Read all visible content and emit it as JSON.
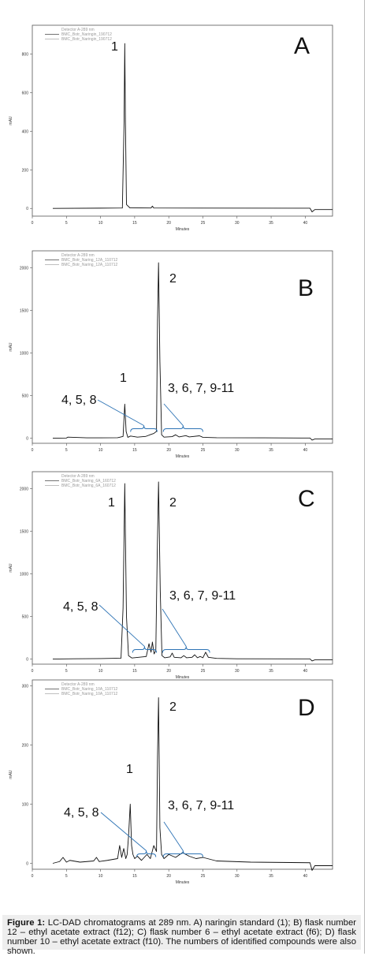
{
  "figure_caption": {
    "label": "Figure 1:",
    "text": "LC-DAD chromatograms at 289 nm. A) naringin standard (1); B) flask number 12 – ethyl acetate extract (f12); C) flask number 6 – ethyl acetate extract (f6); D) flask number 10 – ethyl acetate extract (f10). The numbers of identified compounds were also shown."
  },
  "colors": {
    "trace": "#111111",
    "annotation": "#2e74b5",
    "caption_bg": "#eeeeee"
  },
  "chart_data": [
    {
      "panel": "A",
      "type": "line",
      "xlabel": "Minutes",
      "ylabel": "mAU",
      "xlim": [
        0,
        44
      ],
      "ylim": [
        -40,
        950
      ],
      "xticks": [
        0,
        5,
        10,
        15,
        20,
        25,
        30,
        35,
        40
      ],
      "yticks": [
        0,
        200,
        400,
        600,
        800
      ],
      "legend": [
        "Detector A-289 nm",
        "BMC_Botr_Naringin_190712",
        "BMC_Botr_Naringin_190712"
      ],
      "series": [
        {
          "name": "BMC_Botr_Naringin_190712",
          "x": [
            3,
            13.2,
            13.45,
            13.55,
            13.65,
            13.8,
            14.3,
            17.4,
            17.6,
            17.8,
            40.7,
            41.0,
            41.4,
            44
          ],
          "y": [
            0,
            2,
            450,
            855,
            450,
            20,
            3,
            2,
            12,
            2,
            1,
            -18,
            -6,
            -6
          ]
        }
      ],
      "peak_labels": [
        {
          "text": "1",
          "x": 13.55,
          "y": 855
        }
      ],
      "groups": []
    },
    {
      "panel": "B",
      "type": "line",
      "xlabel": "Minutes",
      "ylabel": "mAU",
      "xlim": [
        0,
        44
      ],
      "ylim": [
        -60,
        2200
      ],
      "xticks": [
        0,
        5,
        10,
        15,
        20,
        25,
        30,
        35,
        40
      ],
      "yticks": [
        0,
        500,
        1000,
        1500,
        2000
      ],
      "legend": [
        "Detector A-289 nm",
        "BMC_Botr_Naring_12A_110712",
        "BMC_Botr_Naring_12A_110712"
      ],
      "series": [
        {
          "name": "BMC_Botr_Naring_12A_110712",
          "x": [
            3,
            5,
            5.2,
            8,
            12.5,
            13.3,
            13.55,
            13.75,
            14.0,
            14.4,
            15.4,
            16.6,
            17.4,
            17.8,
            18.2,
            18.35,
            18.5,
            18.7,
            18.95,
            19.3,
            20.5,
            21,
            21.5,
            22.5,
            23,
            24.5,
            25,
            27,
            34,
            40.7,
            41.0,
            41.4,
            44
          ],
          "y": [
            0,
            2,
            12,
            4,
            5,
            20,
            400,
            80,
            10,
            25,
            12,
            20,
            45,
            55,
            80,
            1380,
            2060,
            900,
            40,
            12,
            18,
            40,
            15,
            30,
            15,
            28,
            10,
            5,
            4,
            2,
            -22,
            -10,
            -10
          ]
        }
      ],
      "peak_labels": [
        {
          "text": "1",
          "x": 13.55,
          "y": 400
        },
        {
          "text": "2",
          "x": 18.5,
          "y": 2060
        }
      ],
      "groups": [
        {
          "label": "4, 5, 8",
          "range": [
            14.4,
            18.3
          ]
        },
        {
          "label": "3, 6, 7, 9-11",
          "range": [
            19.2,
            25
          ]
        }
      ]
    },
    {
      "panel": "C",
      "type": "line",
      "xlabel": "Minutes",
      "ylabel": "mAU",
      "xlim": [
        0,
        44
      ],
      "ylim": [
        -60,
        2200
      ],
      "xticks": [
        0,
        5,
        10,
        15,
        20,
        25,
        30,
        35,
        40
      ],
      "yticks": [
        0,
        500,
        1000,
        1500,
        2000
      ],
      "legend": [
        "Detector A-289 nm",
        "BMC_Botr_Naring_6A_160712",
        "BMC_Botr_Naring_6A_160712"
      ],
      "series": [
        {
          "name": "BMC_Botr_Naring_6A_160712",
          "x": [
            3,
            6,
            10,
            13.0,
            13.3,
            13.55,
            13.8,
            14.1,
            14.6,
            16.7,
            17.1,
            17.4,
            17.6,
            17.85,
            18.1,
            18.3,
            18.5,
            18.75,
            19.0,
            19.4,
            20.2,
            20.5,
            20.8,
            21.8,
            22.2,
            22.6,
            23.4,
            23.8,
            24.2,
            24.6,
            25.0,
            25.4,
            25.8,
            27,
            30,
            40.7,
            41.0,
            41.4,
            44
          ],
          "y": [
            0,
            3,
            5,
            10,
            600,
            2060,
            500,
            40,
            12,
            30,
            180,
            80,
            200,
            60,
            100,
            1200,
            2080,
            800,
            40,
            15,
            25,
            70,
            20,
            15,
            40,
            15,
            20,
            50,
            15,
            30,
            15,
            80,
            20,
            8,
            3,
            2,
            -22,
            -10,
            -10
          ]
        }
      ],
      "peak_labels": [
        {
          "text": "1",
          "x": 13.55,
          "y": 2060
        },
        {
          "text": "2",
          "x": 18.5,
          "y": 2080
        }
      ],
      "groups": [
        {
          "label": "4, 5, 8",
          "range": [
            14.7,
            18.2
          ]
        },
        {
          "label": "3, 6, 7, 9-11",
          "range": [
            19.1,
            26
          ]
        }
      ]
    },
    {
      "panel": "D",
      "type": "line",
      "xlabel": "Minutes",
      "ylabel": "mAU",
      "xlim": [
        0,
        44
      ],
      "ylim": [
        -10,
        310
      ],
      "xticks": [
        0,
        5,
        10,
        15,
        20,
        25,
        30,
        35,
        40
      ],
      "yticks": [
        0,
        100,
        200,
        300
      ],
      "legend": [
        "Detector A-289 nm",
        "BMC_Botr_Naring_10A_110712",
        "BMC_Botr_Naring_10A_110712"
      ],
      "series": [
        {
          "name": "BMC_Botr_Naring_10A_110712",
          "x": [
            3,
            4.0,
            4.5,
            5.0,
            5.5,
            7,
            9,
            9.4,
            9.8,
            11,
            12.5,
            12.8,
            13.1,
            13.4,
            13.7,
            13.9,
            14.1,
            14.35,
            14.55,
            14.75,
            15.0,
            15.4,
            16.0,
            16.8,
            17.3,
            17.8,
            18.2,
            18.35,
            18.5,
            18.7,
            18.95,
            19.3,
            20,
            21,
            22,
            23,
            24,
            25,
            27,
            32,
            40.7,
            41.0,
            41.4,
            44
          ],
          "y": [
            0,
            3,
            10,
            2,
            5,
            2,
            4,
            10,
            3,
            5,
            8,
            30,
            10,
            25,
            8,
            15,
            45,
            100,
            30,
            15,
            8,
            12,
            5,
            15,
            8,
            30,
            20,
            180,
            280,
            60,
            15,
            8,
            15,
            10,
            18,
            12,
            8,
            10,
            4,
            2,
            1,
            -12,
            -4,
            -4
          ]
        }
      ],
      "peak_labels": [
        {
          "text": "1",
          "x": 14.35,
          "y": 100
        },
        {
          "text": "2",
          "x": 18.5,
          "y": 280
        }
      ],
      "groups": [
        {
          "label": "4, 5, 8",
          "range": [
            15.3,
            18.1
          ]
        },
        {
          "label": "3, 6, 7, 9-11",
          "range": [
            19.2,
            25
          ]
        }
      ]
    }
  ]
}
